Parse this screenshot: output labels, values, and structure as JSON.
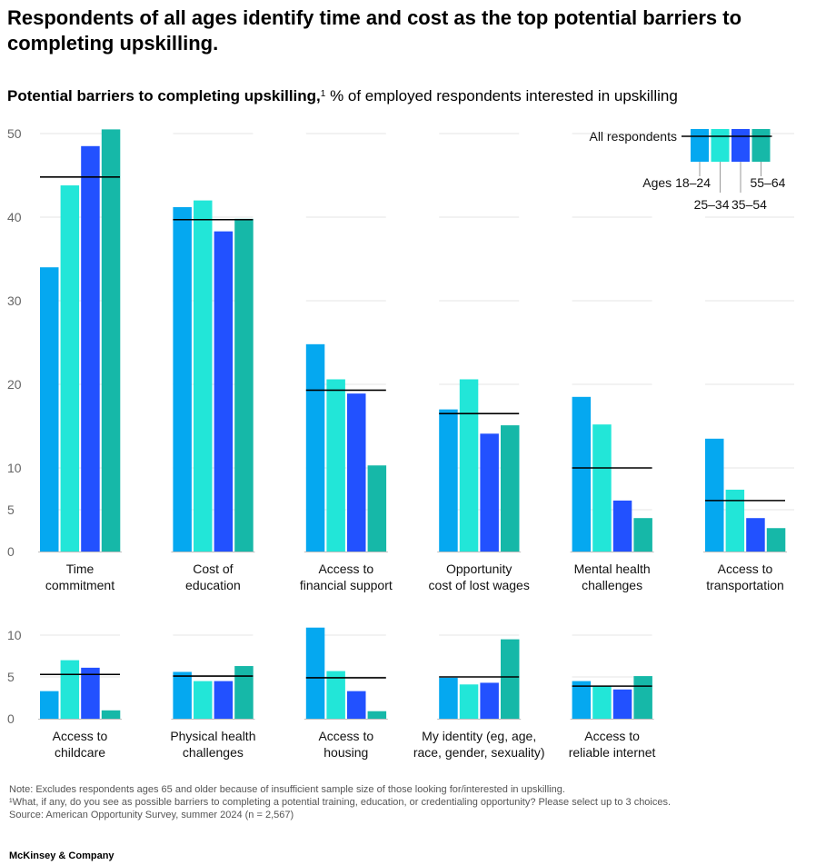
{
  "title": "Respondents of all ages identify time and cost as the top potential barriers to completing upskilling.",
  "subtitle": {
    "bold": "Potential barriers to completing upskilling,",
    "sup": "1",
    "rest": " % of employed respondents interested in upskilling"
  },
  "colors": {
    "ages_18_24": "#05A8F0",
    "ages_25_34": "#22E6D8",
    "ages_35_54": "#2251FF",
    "ages_55_64": "#16B8A8",
    "all": "#000000",
    "grid": "#e6e6e6",
    "axis": "#bdbdbd"
  },
  "chart_data": [
    {
      "type": "bar",
      "panel": "top",
      "ylim": [
        0,
        50
      ],
      "yticks": [
        0,
        5,
        10,
        20,
        30,
        40,
        50
      ],
      "legend": {
        "position": "top-right",
        "all_label": "All respondents",
        "series_labels": [
          "Ages 18–24",
          "25–34",
          "35–54",
          "55–64"
        ]
      },
      "categories": [
        "Time\ncommitment",
        "Cost of\neducation",
        "Access to\nfinancial support",
        "Opportunity\ncost of lost wages",
        "Mental health\nchallenges",
        "Access to\ntransportation"
      ],
      "series": [
        {
          "name": "Ages 18–24",
          "values": [
            34,
            41.2,
            24.8,
            17,
            18.5,
            13.5
          ]
        },
        {
          "name": "25–34",
          "values": [
            43.8,
            42,
            20.6,
            20.6,
            15.2,
            7.4
          ]
        },
        {
          "name": "35–54",
          "values": [
            48.5,
            38.3,
            18.9,
            14.1,
            6.1,
            4
          ]
        },
        {
          "name": "55–64",
          "values": [
            50.5,
            39.8,
            10.3,
            15.1,
            4,
            2.8
          ]
        }
      ],
      "all_respondents": [
        44.8,
        39.7,
        19.3,
        16.5,
        10,
        6.1
      ]
    },
    {
      "type": "bar",
      "panel": "bottom",
      "ylim": [
        0,
        10
      ],
      "yticks": [
        0,
        5,
        10
      ],
      "categories": [
        "Access to\nchildcare",
        "Physical health\nchallenges",
        "Access to\nhousing",
        "My identity (eg, age,\nrace, gender, sexuality)",
        "Access to\nreliable internet"
      ],
      "series": [
        {
          "name": "Ages 18–24",
          "values": [
            3.3,
            5.6,
            10.9,
            4.9,
            4.5
          ]
        },
        {
          "name": "25–34",
          "values": [
            7,
            4.5,
            5.7,
            4.1,
            3.9
          ]
        },
        {
          "name": "35–54",
          "values": [
            6.1,
            4.5,
            3.3,
            4.3,
            3.5
          ]
        },
        {
          "name": "55–64",
          "values": [
            1,
            6.3,
            0.9,
            9.5,
            5.1
          ]
        }
      ],
      "all_respondents": [
        5.3,
        5.1,
        4.9,
        5,
        3.9
      ]
    }
  ],
  "notes": [
    "Note: Excludes respondents ages 65 and older because of insufficient sample size of those looking for/interested in upskilling.",
    "¹What, if any, do you see as possible barriers to completing a potential training, education, or credentialing opportunity? Please select up to 3 choices.",
    "Source: American Opportunity Survey, summer 2024 (n = 2,567)"
  ],
  "brand": "McKinsey & Company"
}
